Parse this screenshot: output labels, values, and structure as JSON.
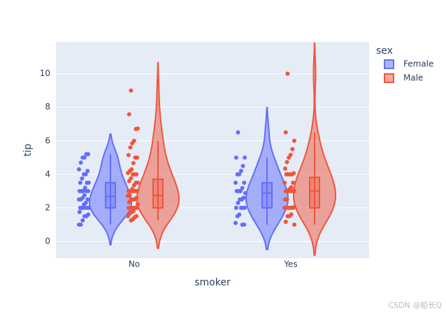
{
  "chart_data": {
    "type": "violin",
    "x_label": "smoker",
    "y_label": "tip",
    "legend_title": "sex",
    "categories": [
      "No",
      "Yes"
    ],
    "ylim": [
      -1,
      11.9
    ],
    "yticks": [
      0,
      2,
      4,
      6,
      8,
      10
    ],
    "grid": true,
    "series": [
      {
        "name": "Female",
        "color": "#636efa",
        "groups": [
          {
            "points": [
              1,
              1,
              1.25,
              1.5,
              1.5,
              1.6,
              1.75,
              2,
              2,
              2,
              2,
              2,
              2,
              2,
              2.2,
              2.3,
              2.5,
              2.5,
              2.5,
              2.6,
              2.75,
              3,
              3,
              3,
              3,
              3,
              3.2,
              3.5,
              3.5,
              3.5,
              3.75,
              4,
              4,
              4.2,
              4.3,
              4.7,
              5,
              5,
              5.2,
              5.2
            ],
            "box": {
              "lower": 1,
              "q1": 2,
              "median": 2.68,
              "q3": 3.5,
              "upper": 5.2
            }
          },
          {
            "points": [
              1,
              1,
              1.1,
              1.5,
              1.6,
              2,
              2,
              2,
              2,
              2.3,
              2.5,
              2.5,
              2.6,
              2.88,
              3,
              3,
              3,
              3.18,
              3.5,
              3.5,
              4,
              4,
              4.2,
              4.5,
              5,
              5,
              6.5
            ],
            "box": {
              "lower": 1,
              "q1": 2,
              "median": 2.88,
              "q3": 3.5,
              "upper": 5
            }
          }
        ]
      },
      {
        "name": "Male",
        "color": "#EF553B",
        "groups": [
          {
            "points": [
              1.25,
              1.32,
              1.44,
              1.5,
              1.5,
              1.66,
              1.75,
              1.8,
              2,
              2,
              2,
              2,
              2,
              2,
              2.01,
              2.23,
              2.34,
              2.5,
              2.5,
              2.5,
              2.6,
              2.72,
              2.75,
              3,
              3,
              3,
              3,
              3,
              3,
              3.12,
              3.35,
              3.5,
              3.5,
              3.6,
              3.76,
              4,
              4,
              4,
              4.08,
              4.19,
              4.3,
              4.67,
              5,
              5,
              5.15,
              5.6,
              5.85,
              6,
              6.7,
              6.73,
              7.58,
              9
            ],
            "box": {
              "lower": 1.25,
              "q1": 2,
              "median": 2.74,
              "q3": 3.71,
              "upper": 6
            }
          },
          {
            "points": [
              1,
              1.17,
              1.5,
              1.5,
              1.61,
              2,
              2,
              2,
              2,
              2,
              2.01,
              2.03,
              2.5,
              2.5,
              3,
              3,
              3,
              3,
              3,
              3,
              3.11,
              3.23,
              3.5,
              3.5,
              4,
              4,
              4,
              4,
              4.06,
              4.34,
              4.73,
              5,
              5.16,
              5.5,
              6,
              6.5,
              10
            ],
            "box": {
              "lower": 1,
              "q1": 2,
              "median": 3,
              "q3": 3.82,
              "upper": 6.5
            }
          }
        ]
      }
    ]
  },
  "watermark": "CSDN @船长Q"
}
